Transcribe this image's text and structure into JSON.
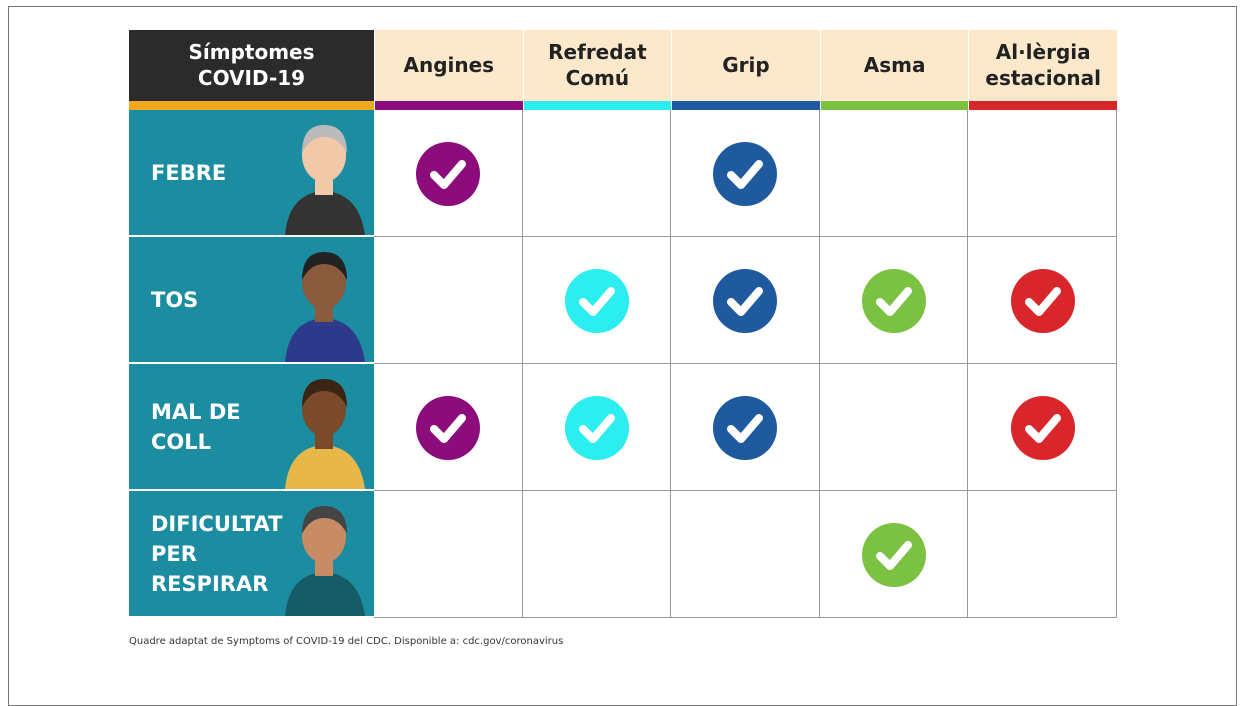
{
  "table": {
    "corner": [
      "Símptomes",
      "COVID-19"
    ],
    "corner_color": "#f0a81c",
    "columns": [
      {
        "label": [
          "Angines"
        ],
        "color": "#8c0c7c"
      },
      {
        "label": [
          "Refredat",
          "Comú"
        ],
        "color": "#2ceef0"
      },
      {
        "label": [
          "Grip"
        ],
        "color": "#1f5a9e"
      },
      {
        "label": [
          "Asma"
        ],
        "color": "#7cc242"
      },
      {
        "label": [
          "Al·lèrgia",
          "estacional"
        ],
        "color": "#d9262b"
      }
    ],
    "rows": [
      {
        "label": [
          "FEBRE"
        ],
        "checks": [
          true,
          false,
          true,
          false,
          false
        ]
      },
      {
        "label": [
          "TOS"
        ],
        "checks": [
          false,
          true,
          true,
          true,
          true
        ]
      },
      {
        "label": [
          "MAL DE",
          "COLL"
        ],
        "checks": [
          true,
          true,
          true,
          false,
          true
        ]
      },
      {
        "label": [
          "DIFICULTAT",
          "PER",
          "RESPIRAR"
        ],
        "checks": [
          false,
          false,
          false,
          true,
          false
        ]
      }
    ]
  },
  "footer": "Quadre adaptat de Symptoms of COVID-19 del CDC. Disponible a: cdc.gov/coronavirus"
}
